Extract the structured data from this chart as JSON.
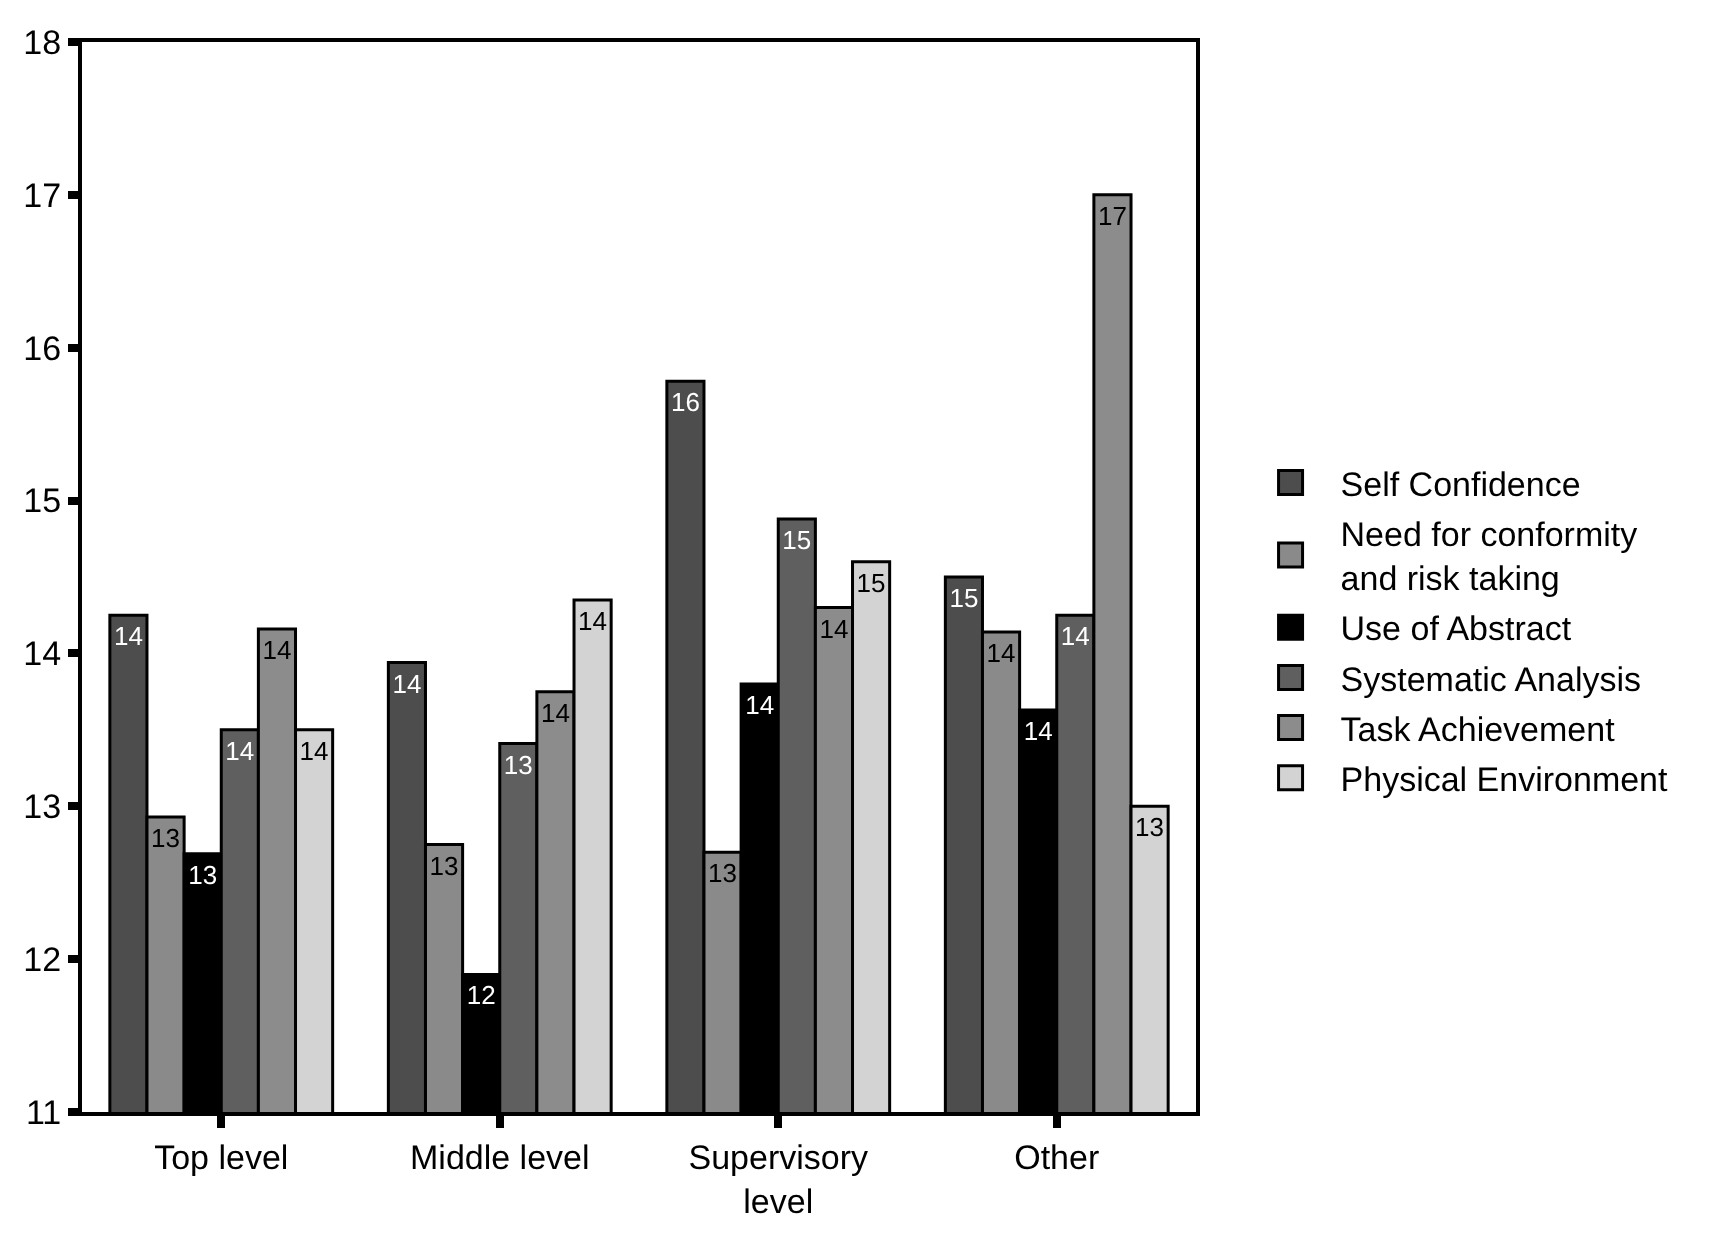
{
  "chart_data": {
    "type": "bar",
    "categories": [
      "Top level",
      "Middle level",
      "Supervisory level",
      "Other"
    ],
    "series": [
      {
        "name": "Self Confidence",
        "color": "#4d4d4d",
        "values": [
          14.25,
          13.94,
          15.78,
          14.5
        ],
        "value_labels": [
          "14",
          "14",
          "16",
          "15"
        ]
      },
      {
        "name": "Need for conformity and risk taking",
        "color": "#8a8a8a",
        "values": [
          12.93,
          12.75,
          12.7,
          14.14
        ],
        "value_labels": [
          "13",
          "13",
          "13",
          "14"
        ]
      },
      {
        "name": "Use of Abstract",
        "color": "#000000",
        "values": [
          12.69,
          11.9,
          13.8,
          13.63
        ],
        "value_labels": [
          "13",
          "12",
          "14",
          "14"
        ]
      },
      {
        "name": "Systematic Analysis",
        "color": "#5f5f5f",
        "values": [
          13.5,
          13.41,
          14.88,
          14.25
        ],
        "value_labels": [
          "14",
          "13",
          "15",
          "14"
        ]
      },
      {
        "name": "Task Achievement",
        "color": "#8c8c8c",
        "values": [
          14.16,
          13.75,
          14.3,
          17.0
        ],
        "value_labels": [
          "14",
          "14",
          "14",
          "17"
        ]
      },
      {
        "name": "Physical Environment",
        "color": "#d3d3d3",
        "values": [
          13.5,
          14.35,
          14.6,
          13.0
        ],
        "value_labels": [
          "14",
          "14",
          "15",
          "13"
        ]
      }
    ],
    "ylim": [
      11,
      18
    ],
    "yticks": [
      11,
      12,
      13,
      14,
      15,
      16,
      17,
      18
    ],
    "legend": "right"
  }
}
